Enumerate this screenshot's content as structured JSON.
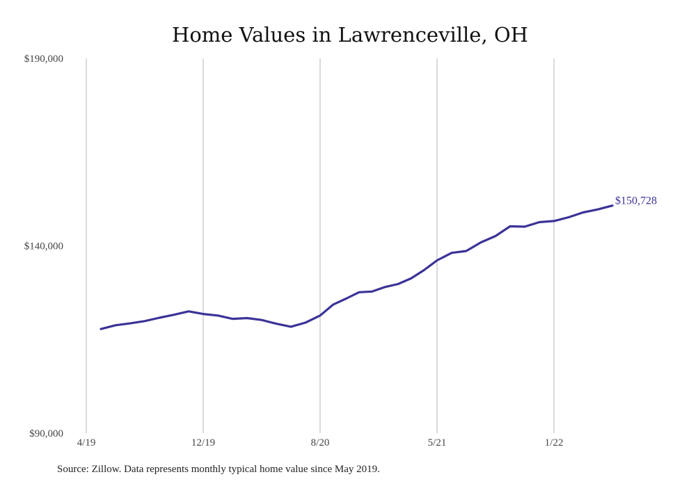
{
  "chart_data": {
    "type": "line",
    "title": "Home Values in Lawrenceville, OH",
    "xlabel": "",
    "ylabel": "",
    "x_tick_labels": [
      "4/19",
      "12/19",
      "8/20",
      "5/21",
      "1/22"
    ],
    "y_tick_labels": [
      "$190,000",
      "$140,000",
      "$90,000"
    ],
    "y_ticks": [
      190000,
      140000,
      90000
    ],
    "ylim": [
      90000,
      190000
    ],
    "grid": "vertical",
    "series": [
      {
        "color": "#3b3397",
        "x": [
          "5/19",
          "6/19",
          "7/19",
          "8/19",
          "9/19",
          "10/19",
          "11/19",
          "12/19",
          "1/20",
          "2/20",
          "3/20",
          "4/20",
          "5/20",
          "6/20",
          "7/20",
          "8/20",
          "9/20",
          "10/20",
          "11/20",
          "12/20",
          "1/21",
          "2/21",
          "3/21",
          "4/21",
          "5/21",
          "6/21",
          "7/21",
          "8/21",
          "9/21",
          "10/21",
          "11/21",
          "12/21",
          "1/22",
          "2/22",
          "3/22",
          "4/22",
          "5/22"
        ],
        "values": [
          117800,
          118800,
          119300,
          119900,
          120800,
          121600,
          122500,
          121800,
          121400,
          120500,
          120700,
          120200,
          119200,
          118400,
          119500,
          121400,
          124300,
          125900,
          127600,
          127800,
          129000,
          129800,
          131300,
          133500,
          136100,
          138100,
          138600,
          140900,
          142600,
          145200,
          145100,
          146300,
          146600,
          147600,
          148900,
          149700,
          150728
        ],
        "end_label": "$150,728"
      }
    ],
    "source_note": "Source: Zillow. Data represents monthly typical home value since May 2019."
  }
}
